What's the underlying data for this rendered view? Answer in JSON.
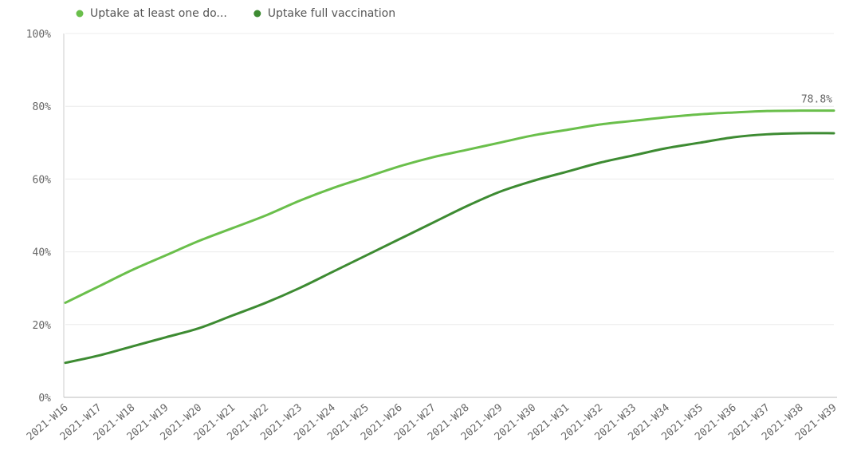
{
  "chart_data": {
    "type": "line",
    "categories": [
      "2021-W16",
      "2021-W17",
      "2021-W18",
      "2021-W19",
      "2021-W20",
      "2021-W21",
      "2021-W22",
      "2021-W23",
      "2021-W24",
      "2021-W25",
      "2021-W26",
      "2021-W27",
      "2021-W28",
      "2021-W29",
      "2021-W30",
      "2021-W31",
      "2021-W32",
      "2021-W33",
      "2021-W34",
      "2021-W35",
      "2021-W36",
      "2021-W37",
      "2021-W38",
      "2021-W39"
    ],
    "series": [
      {
        "name": "Uptake at least one do...",
        "color": "#6abf4b",
        "values": [
          26,
          30.5,
          35,
          39,
          43,
          46.5,
          50,
          54,
          57.5,
          60.5,
          63.5,
          66,
          68,
          70,
          72,
          73.5,
          75,
          76,
          77,
          77.8,
          78.3,
          78.7,
          78.8,
          78.8
        ],
        "value_labels": [
          null,
          null,
          null,
          null,
          null,
          null,
          null,
          null,
          null,
          null,
          null,
          null,
          null,
          null,
          null,
          null,
          null,
          null,
          null,
          null,
          null,
          null,
          null,
          "78.8%"
        ]
      },
      {
        "name": "Uptake full vaccination",
        "color": "#3d8b32",
        "values": [
          9.5,
          11.5,
          14,
          16.5,
          19,
          22.5,
          26,
          30,
          34.5,
          39,
          43.5,
          48,
          52.5,
          56.5,
          59.5,
          62,
          64.5,
          66.5,
          68.5,
          70,
          71.5,
          72.3,
          72.6,
          72.6
        ]
      }
    ],
    "ylim": [
      0,
      100
    ],
    "yticks": [
      {
        "value": 0,
        "label": "0%"
      },
      {
        "value": 20,
        "label": "20%"
      },
      {
        "value": 40,
        "label": "40%"
      },
      {
        "value": 60,
        "label": "60%"
      },
      {
        "value": 80,
        "label": "80%"
      },
      {
        "value": 100,
        "label": "100%"
      }
    ],
    "grid": true,
    "legend": "top"
  }
}
